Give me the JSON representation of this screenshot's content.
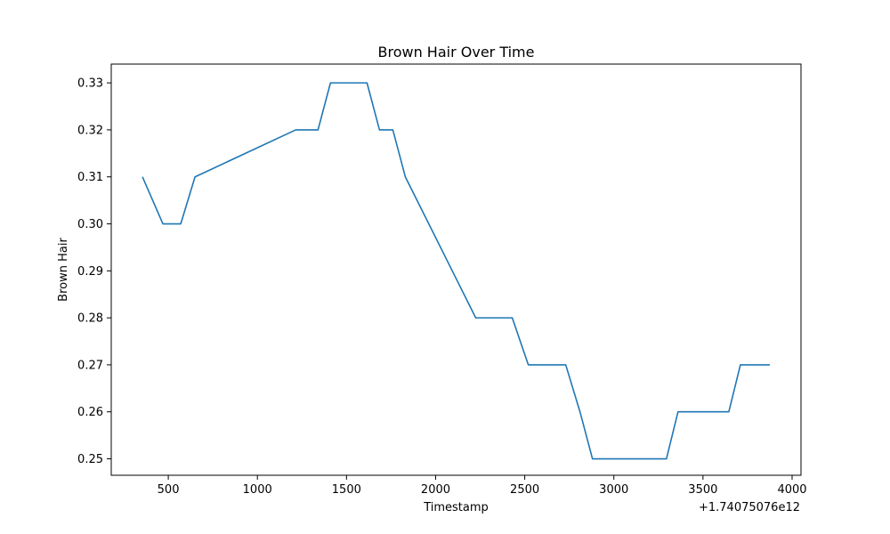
{
  "chart_data": {
    "type": "line",
    "title": "Brown Hair Over Time",
    "xlabel": "Timestamp",
    "ylabel": "Brown Hair",
    "x_offset_label": "+1.74075076e12",
    "xlim": [
      180,
      4050
    ],
    "ylim": [
      0.2465,
      0.334
    ],
    "xticks": [
      500,
      1000,
      1500,
      2000,
      2500,
      3000,
      3500,
      4000
    ],
    "yticks": [
      0.25,
      0.26,
      0.27,
      0.28,
      0.29,
      0.3,
      0.31,
      0.32,
      0.33
    ],
    "xtick_labels": [
      "500",
      "1000",
      "1500",
      "2000",
      "2500",
      "3000",
      "3500",
      "4000"
    ],
    "ytick_labels": [
      "0.25",
      "0.26",
      "0.27",
      "0.28",
      "0.29",
      "0.30",
      "0.31",
      "0.32",
      "0.33"
    ],
    "grid": false,
    "colors": {
      "series": "#1f77b4"
    },
    "series": [
      {
        "x": [
          355,
          470,
          570,
          650,
          1215,
          1340,
          1410,
          1615,
          1685,
          1760,
          1830,
          2225,
          2430,
          2520,
          2730,
          2810,
          2880,
          3295,
          3360,
          3645,
          3710,
          3875
        ],
        "y": [
          0.31,
          0.3,
          0.3,
          0.31,
          0.32,
          0.32,
          0.33,
          0.33,
          0.32,
          0.32,
          0.31,
          0.28,
          0.28,
          0.27,
          0.27,
          0.26,
          0.25,
          0.25,
          0.26,
          0.26,
          0.27,
          0.27
        ]
      }
    ]
  }
}
